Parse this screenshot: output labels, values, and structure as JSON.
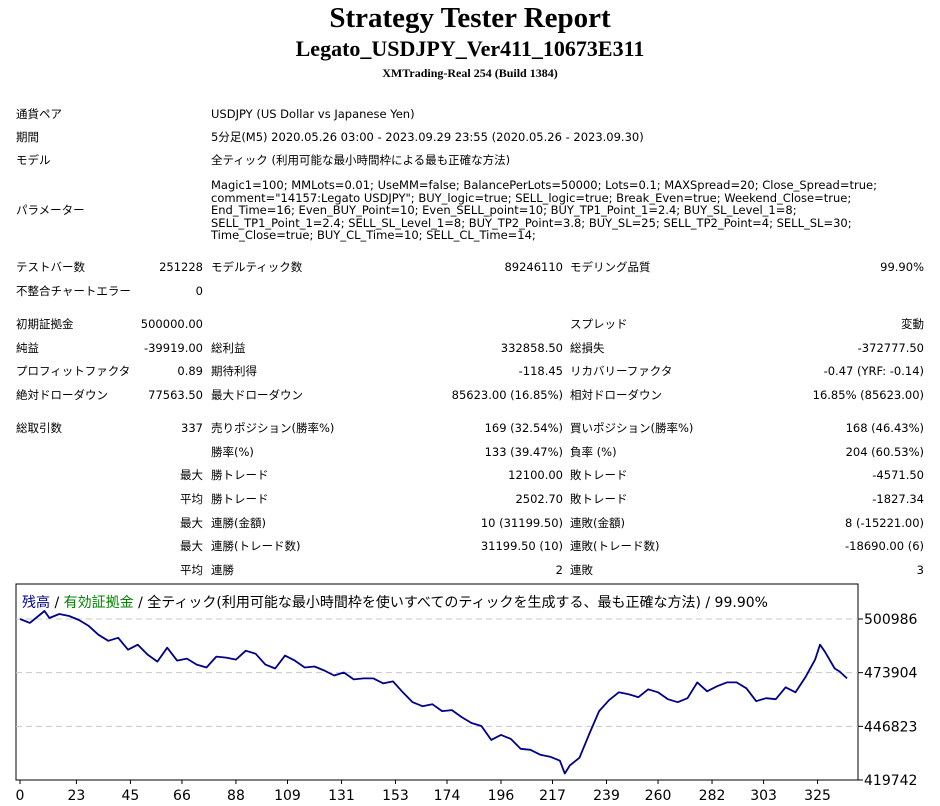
{
  "header": {
    "title": "Strategy Tester Report",
    "subtitle": "Legato_USDJPY_Ver411_10673E311",
    "server": "XMTrading-Real 254 (Build 1384)"
  },
  "info": {
    "symbol_label": "通貨ペア",
    "symbol": "USDJPY (US Dollar vs Japanese Yen)",
    "period_label": "期間",
    "period": "5分足(M5) 2020.05.26 03:00 - 2023.09.29 23:55 (2020.05.26 - 2023.09.30)",
    "model_label": "モデル",
    "model": "全ティック (利用可能な最小時間枠による最も正確な方法)",
    "params_label": "パラメーター",
    "params": "Magic1=100; MMLots=0.01; UseMM=false; BalancePerLots=50000; Lots=0.1; MAXSpread=20; Close_Spread=true; comment=\"14157:Legato USDJPY\"; BUY_logic=true; SELL_logic=true; Break_Even=true; Weekend_Close=true; End_Time=16; Even_BUY_Point=10; Even_SELL_point=10; BUY_TP1_Point_1=2.4; BUY_SL_Level_1=8; SELL_TP1_Point_1=2.4; SELL_SL_Level_1=8; BUY_TP2_Point=3.8; BUY_SL=25; SELL_TP2_Point=4; SELL_SL=30; Time_Close=true; BUY_CL_Time=10; SELL_CL_Time=14;"
  },
  "stats": {
    "bars_label": "テストバー数",
    "bars": "251228",
    "ticks_label": "モデルティック数",
    "ticks": "89246110",
    "quality_label": "モデリング品質",
    "quality": "99.90%",
    "mismatch_label": "不整合チャートエラー",
    "mismatch": "0",
    "deposit_label": "初期証拠金",
    "deposit": "500000.00",
    "spread_label": "スプレッド",
    "spread": "変動",
    "net_label": "純益",
    "net": "-39919.00",
    "gross_profit_label": "総利益",
    "gross_profit": "332858.50",
    "gross_loss_label": "総損失",
    "gross_loss": "-372777.50",
    "pf_label": "プロフィットファクタ",
    "pf": "0.89",
    "payoff_label": "期待利得",
    "payoff": "-118.45",
    "recovery_label": "リカバリーファクタ",
    "recovery": "-0.47 (YRF: -0.14)",
    "abs_dd_label": "絶対ドローダウン",
    "abs_dd": "77563.50",
    "max_dd_label": "最大ドローダウン",
    "max_dd": "85623.00 (16.85%)",
    "rel_dd_label": "相対ドローダウン",
    "rel_dd": "16.85% (85623.00)",
    "trades_label": "総取引数",
    "trades": "337",
    "short_label": "売りポジション(勝率%)",
    "short": "169 (32.54%)",
    "long_label": "買いポジション(勝率%)",
    "long": "168 (46.43%)",
    "winrate_label": "勝率(%)",
    "winrate": "133 (39.47%)",
    "lossrate_label": "負率 (%)",
    "lossrate": "204 (60.53%)",
    "max_label": "最大",
    "avg_label": "平均",
    "win_trade_label": "勝トレード",
    "lose_trade_label": "敗トレード",
    "largest_win": "12100.00",
    "largest_loss": "-4571.50",
    "avg_win": "2502.70",
    "avg_loss": "-1827.34",
    "cons_win_amt_label": "連勝(金額)",
    "cons_win_amt": "10 (31199.50)",
    "cons_loss_amt_label": "連敗(金額)",
    "cons_loss_amt": "8 (-15221.00)",
    "cons_win_cnt_label": "連勝(トレード数)",
    "cons_win_cnt": "31199.50 (10)",
    "cons_loss_cnt_label": "連敗(トレード数)",
    "cons_loss_cnt": "-18690.00 (6)",
    "avg_cons_win_label": "連勝",
    "avg_cons_win": "2",
    "avg_cons_loss_label": "連敗",
    "avg_cons_loss": "3"
  },
  "chart_data": {
    "type": "line",
    "legend_balance": "残高",
    "legend_sep1": " / ",
    "legend_equity": "有効証拠金",
    "legend_rest": " / 全ティック(利用可能な最小時間枠を使いすべてのティックを生成する、最も正確な方法) / 99.90%",
    "colors": {
      "balance": "#00008b",
      "equity": "#008000",
      "grid": "#c8c8c8"
    },
    "ylim": [
      419742,
      500986
    ],
    "yticks": [
      "500986",
      "473904",
      "446823",
      "419742"
    ],
    "xlim": [
      0,
      337
    ],
    "xticks": [
      0,
      23,
      45,
      66,
      88,
      109,
      131,
      153,
      174,
      196,
      217,
      239,
      260,
      282,
      303,
      325
    ],
    "grid": true,
    "series": [
      {
        "x": [
          0,
          4,
          8,
          10,
          12,
          16,
          20,
          24,
          28,
          32,
          36,
          40,
          44,
          48,
          52,
          56,
          60,
          64,
          68,
          72,
          76,
          80,
          84,
          88,
          92,
          96,
          100,
          104,
          108,
          112,
          116,
          120,
          124,
          128,
          132,
          136,
          140,
          144,
          148,
          152,
          156,
          160,
          164,
          168,
          172,
          176,
          180,
          184,
          188,
          192,
          196,
          200,
          204,
          208,
          212,
          216,
          220,
          222,
          224,
          228,
          232,
          236,
          240,
          244,
          248,
          252,
          256,
          260,
          264,
          268,
          272,
          276,
          280,
          284,
          288,
          292,
          296,
          300,
          304,
          308,
          312,
          316,
          320,
          324,
          326,
          328,
          332,
          334,
          337
        ],
        "values": [
          501000,
          499000,
          503000,
          505000,
          501500,
          503500,
          502500,
          500500,
          497500,
          493000,
          490000,
          491500,
          485500,
          488000,
          483000,
          479500,
          486500,
          480000,
          481000,
          478000,
          476500,
          482000,
          481500,
          480500,
          485000,
          483500,
          478000,
          476000,
          482500,
          480000,
          476500,
          477000,
          475000,
          472500,
          474000,
          470500,
          471000,
          471000,
          468500,
          469500,
          464000,
          459000,
          457000,
          458000,
          454500,
          455000,
          451500,
          448500,
          447000,
          440000,
          442500,
          440500,
          435500,
          435000,
          432500,
          431500,
          429500,
          423000,
          427000,
          431000,
          443000,
          454500,
          460000,
          464000,
          463000,
          461500,
          465500,
          464000,
          460500,
          459000,
          461000,
          469000,
          464500,
          467000,
          469000,
          469000,
          466000,
          459500,
          461000,
          460500,
          466500,
          464000,
          471500,
          480500,
          488000,
          484500,
          476000,
          474500,
          471000
        ]
      }
    ]
  }
}
